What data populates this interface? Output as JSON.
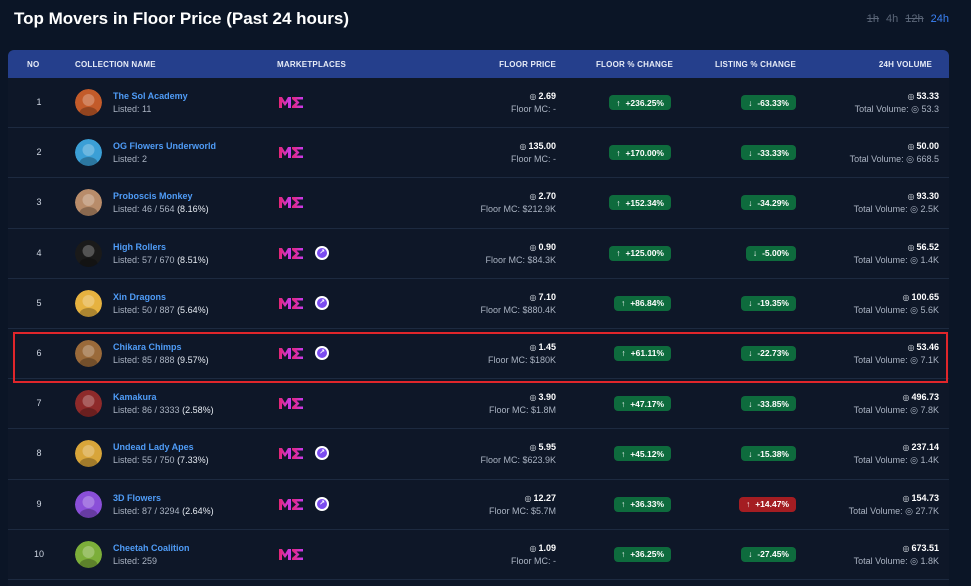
{
  "page": {
    "title": "Top Movers in Floor Price (Past 24 hours)"
  },
  "time_tabs": [
    "1h",
    "4h",
    "12h",
    "24h"
  ],
  "active_tab": "24h",
  "columns": {
    "no": "NO",
    "collection": "COLLECTION NAME",
    "marketplaces": "MARKETPLACES",
    "floor_price": "FLOOR PRICE",
    "floor_change": "FLOOR % CHANGE",
    "listing_change": "LISTING % CHANGE",
    "volume": "24H VOLUME"
  },
  "rows": [
    {
      "no": "1",
      "name": "The Sol Academy",
      "listed": "Listed: 11",
      "pct": "",
      "floor": "2.69",
      "floor_mc": "Floor MC: -",
      "floor_change": "+236.25%",
      "listing_change": "-63.33%",
      "listing_dir": "down",
      "volume": "53.33",
      "total_volume": "Total Volume: ◎ 53.3",
      "tensor": false,
      "avatar_color": "#c35b2a"
    },
    {
      "no": "2",
      "name": "OG Flowers Underworld",
      "listed": "Listed: 2",
      "pct": "",
      "floor": "135.00",
      "floor_mc": "Floor MC: -",
      "floor_change": "+170.00%",
      "listing_change": "-33.33%",
      "listing_dir": "down",
      "volume": "50.00",
      "total_volume": "Total Volume: ◎ 668.5",
      "tensor": false,
      "avatar_color": "#3b9fd6"
    },
    {
      "no": "3",
      "name": "Proboscis Monkey",
      "listed": "Listed: 46 / 564",
      "pct": "(8.16%)",
      "floor": "2.70",
      "floor_mc": "Floor MC: $212.9K",
      "floor_change": "+152.34%",
      "listing_change": "-34.29%",
      "listing_dir": "down",
      "volume": "93.30",
      "total_volume": "Total Volume: ◎ 2.5K",
      "tensor": false,
      "avatar_color": "#b88c6a"
    },
    {
      "no": "4",
      "name": "High Rollers",
      "listed": "Listed: 57 / 670",
      "pct": "(8.51%)",
      "floor": "0.90",
      "floor_mc": "Floor MC: $84.3K",
      "floor_change": "+125.00%",
      "listing_change": "-5.00%",
      "listing_dir": "down",
      "volume": "56.52",
      "total_volume": "Total Volume: ◎ 1.4K",
      "tensor": true,
      "avatar_color": "#1a1a1a"
    },
    {
      "no": "5",
      "name": "Xin Dragons",
      "listed": "Listed: 50 / 887",
      "pct": "(5.64%)",
      "floor": "7.10",
      "floor_mc": "Floor MC: $880.4K",
      "floor_change": "+86.84%",
      "listing_change": "-19.35%",
      "listing_dir": "down",
      "volume": "100.65",
      "total_volume": "Total Volume: ◎ 5.6K",
      "tensor": true,
      "avatar_color": "#e6b240"
    },
    {
      "no": "6",
      "name": "Chikara Chimps",
      "listed": "Listed: 85 / 888",
      "pct": "(9.57%)",
      "floor": "1.45",
      "floor_mc": "Floor MC: $180K",
      "floor_change": "+61.11%",
      "listing_change": "-22.73%",
      "listing_dir": "down",
      "volume": "53.46",
      "total_volume": "Total Volume: ◎ 7.1K",
      "tensor": true,
      "avatar_color": "#9a6a3a"
    },
    {
      "no": "7",
      "name": "Kamakura",
      "listed": "Listed: 86 / 3333",
      "pct": "(2.58%)",
      "floor": "3.90",
      "floor_mc": "Floor MC: $1.8M",
      "floor_change": "+47.17%",
      "listing_change": "-33.85%",
      "listing_dir": "down",
      "volume": "496.73",
      "total_volume": "Total Volume: ◎ 7.8K",
      "tensor": false,
      "avatar_color": "#8e2a2a"
    },
    {
      "no": "8",
      "name": "Undead Lady Apes",
      "listed": "Listed: 55 / 750",
      "pct": "(7.33%)",
      "floor": "5.95",
      "floor_mc": "Floor MC: $623.9K",
      "floor_change": "+45.12%",
      "listing_change": "-15.38%",
      "listing_dir": "down",
      "volume": "237.14",
      "total_volume": "Total Volume: ◎ 1.4K",
      "tensor": true,
      "avatar_color": "#d8a53a"
    },
    {
      "no": "9",
      "name": "3D Flowers",
      "listed": "Listed: 87 / 3294",
      "pct": "(2.64%)",
      "floor": "12.27",
      "floor_mc": "Floor MC: $5.7M",
      "floor_change": "+36.33%",
      "listing_change": "+14.47%",
      "listing_dir": "up",
      "volume": "154.73",
      "total_volume": "Total Volume: ◎ 27.7K",
      "tensor": true,
      "avatar_color": "#8a4fd8"
    },
    {
      "no": "10",
      "name": "Cheetah Coalition",
      "listed": "Listed: 259",
      "pct": "",
      "floor": "1.09",
      "floor_mc": "Floor MC: -",
      "floor_change": "+36.25%",
      "listing_change": "-27.45%",
      "listing_dir": "down",
      "volume": "673.51",
      "total_volume": "Total Volume: ◎ 1.8K",
      "tensor": false,
      "avatar_color": "#7cae3a"
    }
  ],
  "highlighted_row": "6",
  "colors": {
    "accent": "#3b82f6",
    "header": "#253f8c",
    "positive": "#0e6b3d",
    "negative": "#a41d22",
    "highlight": "#e0262b"
  }
}
